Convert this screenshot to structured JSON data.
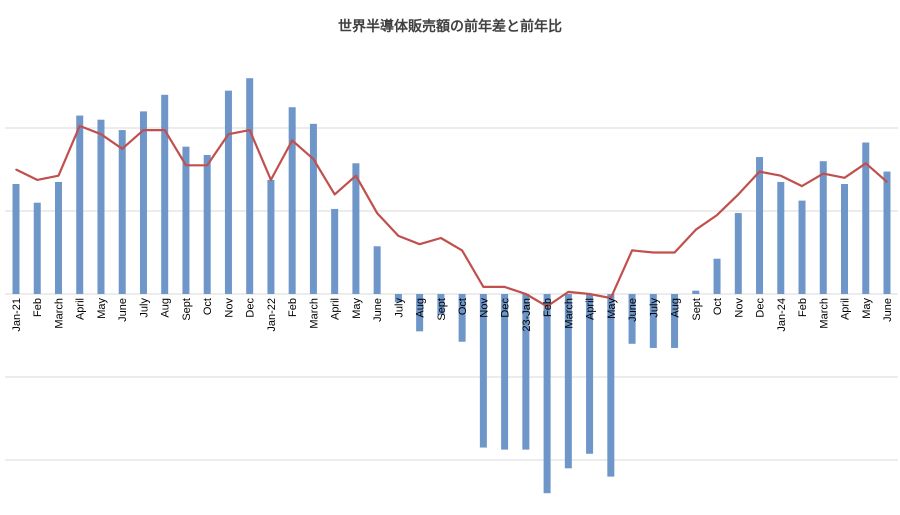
{
  "chart_data": {
    "type": "bar",
    "title": "世界半導体販売額の前年差と前年比",
    "xlabel": "",
    "ylabel": "",
    "categories": [
      "Jan-21",
      "Feb",
      "March",
      "April",
      "May",
      "June",
      "July",
      "Aug",
      "Sept",
      "Oct",
      "Nov",
      "Dec",
      "Jan-22",
      "Feb",
      "March",
      "April",
      "May",
      "June",
      "July",
      "Aug",
      "Sept",
      "Oct",
      "Nov",
      "Dec",
      "23-Jan",
      "Feb",
      "March",
      "April",
      "May",
      "June",
      "July",
      "Aug",
      "Sept",
      "Oct",
      "Nov",
      "Dec",
      "Jan-24",
      "Feb",
      "March",
      "April",
      "May",
      "June"
    ],
    "ylim": [
      -53,
      60
    ],
    "bar_ylim": [
      -53,
      60
    ],
    "line_ylim": [
      -53,
      60
    ],
    "gridlines": [
      40,
      20,
      0,
      -20,
      -40
    ],
    "grid": true,
    "series": [
      {
        "type": "bar",
        "color": "#6f96c9",
        "values": [
          26.5,
          22,
          27,
          43,
          42,
          39.5,
          44,
          48,
          35.5,
          33.5,
          49,
          52,
          27.5,
          45,
          41,
          20.5,
          31.5,
          11.5,
          -2,
          -9,
          -5,
          -11.5,
          -37,
          -37.5,
          -37.5,
          -48,
          -42,
          -38.5,
          -44,
          -12,
          -13,
          -13,
          0.8,
          8.5,
          19.5,
          33,
          27,
          22.5,
          32,
          26.5,
          36.5,
          29.5
        ]
      },
      {
        "type": "line",
        "color": "#c0504d",
        "values": [
          30,
          27.5,
          28.5,
          40.5,
          38.5,
          35,
          39.5,
          39.5,
          31,
          31,
          38.5,
          39.5,
          27.5,
          37,
          32.5,
          24,
          28.5,
          19.5,
          14,
          12,
          13.5,
          10.5,
          1.7,
          1.7,
          0,
          -3,
          0.5,
          0,
          -1,
          10.5,
          10,
          10,
          15.5,
          19,
          24,
          29.5,
          28.5,
          26,
          29,
          28,
          31.5,
          27
        ]
      }
    ]
  },
  "colors": {
    "bars": "#6f96c9",
    "line": "#c0504d",
    "grid": "#d9d9d9",
    "title": "#404040"
  }
}
